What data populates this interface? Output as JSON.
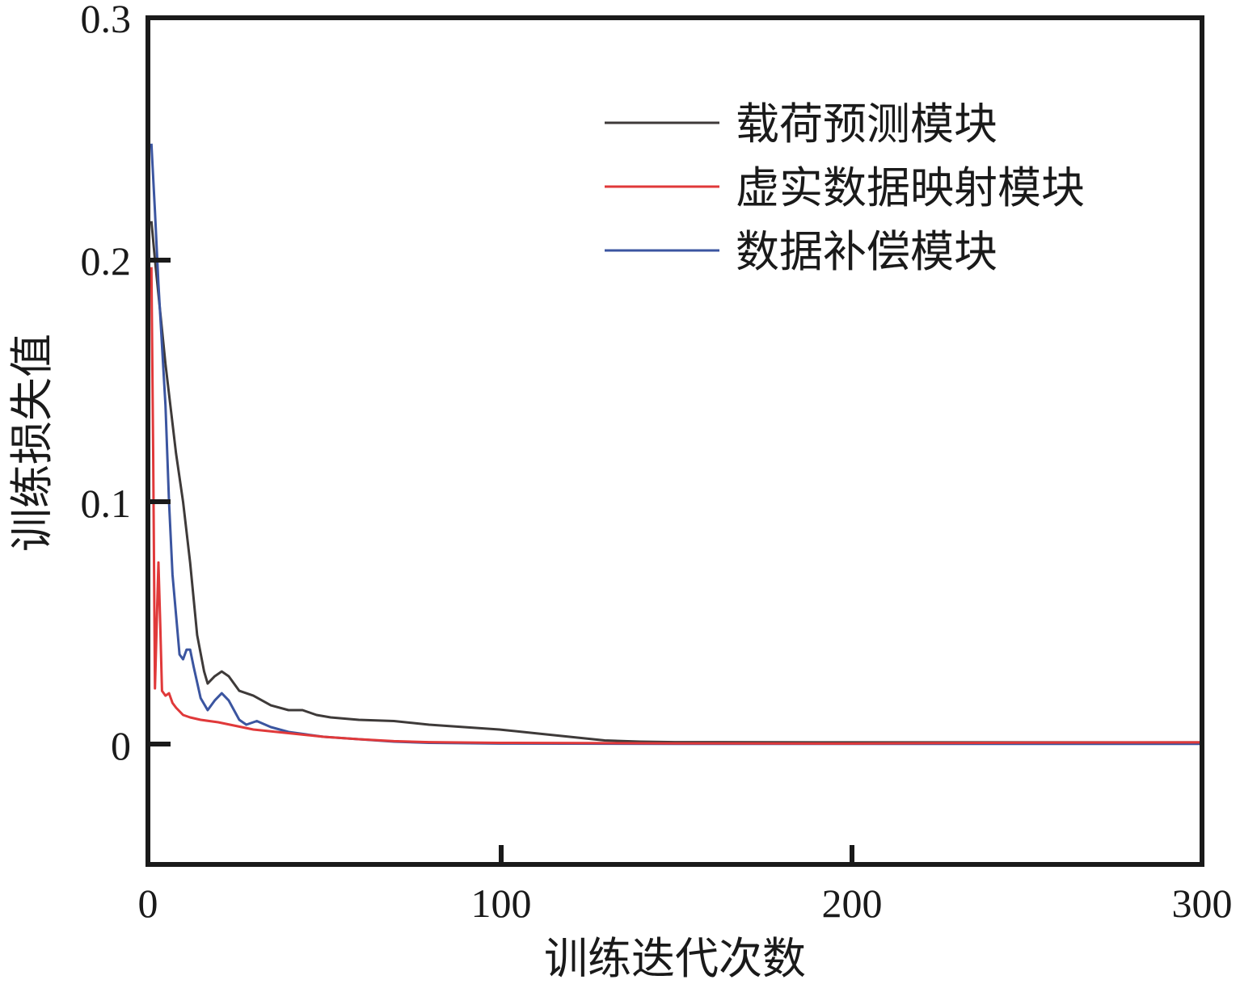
{
  "chart_data": {
    "type": "line",
    "title": "",
    "xlabel": "训练迭代次数",
    "ylabel": "训练损失值",
    "xlim": [
      0,
      300
    ],
    "ylim": [
      -0.05,
      0.3
    ],
    "xticks": [
      0,
      100,
      200,
      300
    ],
    "xtick_labels": [
      "0",
      "100",
      "200",
      "300"
    ],
    "yticks": [
      0,
      0.1,
      0.2,
      0.3
    ],
    "ytick_labels": [
      "0",
      "0.1",
      "0.2",
      "0.3"
    ],
    "grid": false,
    "legend_position": "upper right",
    "series": [
      {
        "name": "载荷预测模块",
        "color": "#3e3a39",
        "x": [
          1,
          2,
          5,
          8,
          10,
          12,
          14,
          16,
          17,
          19,
          21,
          23,
          26,
          30,
          35,
          40,
          44,
          48,
          52,
          60,
          70,
          80,
          90,
          100,
          110,
          120,
          130,
          140,
          150,
          200,
          250,
          300
        ],
        "values": [
          0.216,
          0.2,
          0.157,
          0.12,
          0.1,
          0.075,
          0.045,
          0.03,
          0.025,
          0.028,
          0.03,
          0.028,
          0.022,
          0.02,
          0.016,
          0.014,
          0.014,
          0.012,
          0.011,
          0.01,
          0.0095,
          0.008,
          0.007,
          0.006,
          0.0045,
          0.003,
          0.0015,
          0.001,
          0.0008,
          0.0007,
          0.0007,
          0.0007
        ]
      },
      {
        "name": "虚实数据映射模块",
        "color": "#e0393a",
        "x": [
          1,
          1.5,
          2,
          2.5,
          3,
          3.5,
          4,
          5,
          6,
          7,
          8,
          10,
          12,
          15,
          20,
          25,
          30,
          40,
          50,
          60,
          70,
          80,
          100,
          150,
          200,
          250,
          300
        ],
        "values": [
          0.197,
          0.12,
          0.023,
          0.05,
          0.075,
          0.05,
          0.022,
          0.02,
          0.021,
          0.017,
          0.015,
          0.012,
          0.011,
          0.01,
          0.009,
          0.0075,
          0.006,
          0.0045,
          0.003,
          0.002,
          0.0012,
          0.0008,
          0.0005,
          0.0003,
          0.0002,
          0.0006,
          0.0007
        ]
      },
      {
        "name": "数据补偿模块",
        "color": "#3b55a0",
        "x": [
          1,
          2,
          3,
          5,
          6,
          7,
          9,
          10,
          11,
          12,
          13,
          15,
          17,
          19,
          21,
          23,
          26,
          28,
          31,
          35,
          40,
          45,
          50,
          60,
          70,
          80,
          100,
          150,
          200,
          300
        ],
        "values": [
          0.248,
          0.22,
          0.19,
          0.14,
          0.1,
          0.07,
          0.037,
          0.035,
          0.039,
          0.039,
          0.032,
          0.019,
          0.014,
          0.018,
          0.021,
          0.018,
          0.01,
          0.008,
          0.0095,
          0.007,
          0.005,
          0.004,
          0.003,
          0.002,
          0.001,
          0.0005,
          0.0002,
          0.0001,
          0.0001,
          0.0001
        ]
      }
    ]
  },
  "legend": {
    "items": [
      {
        "label": "载荷预测模块",
        "color": "#3e3a39"
      },
      {
        "label": "虚实数据映射模块",
        "color": "#e0393a"
      },
      {
        "label": "数据补偿模块",
        "color": "#3b55a0"
      }
    ]
  },
  "axes": {
    "x_title": "训练迭代次数",
    "y_title": "训练损失值",
    "x_tick_labels": [
      "0",
      "100",
      "200",
      "300"
    ],
    "y_tick_labels": [
      "0",
      "0.1",
      "0.2",
      "0.3"
    ]
  }
}
